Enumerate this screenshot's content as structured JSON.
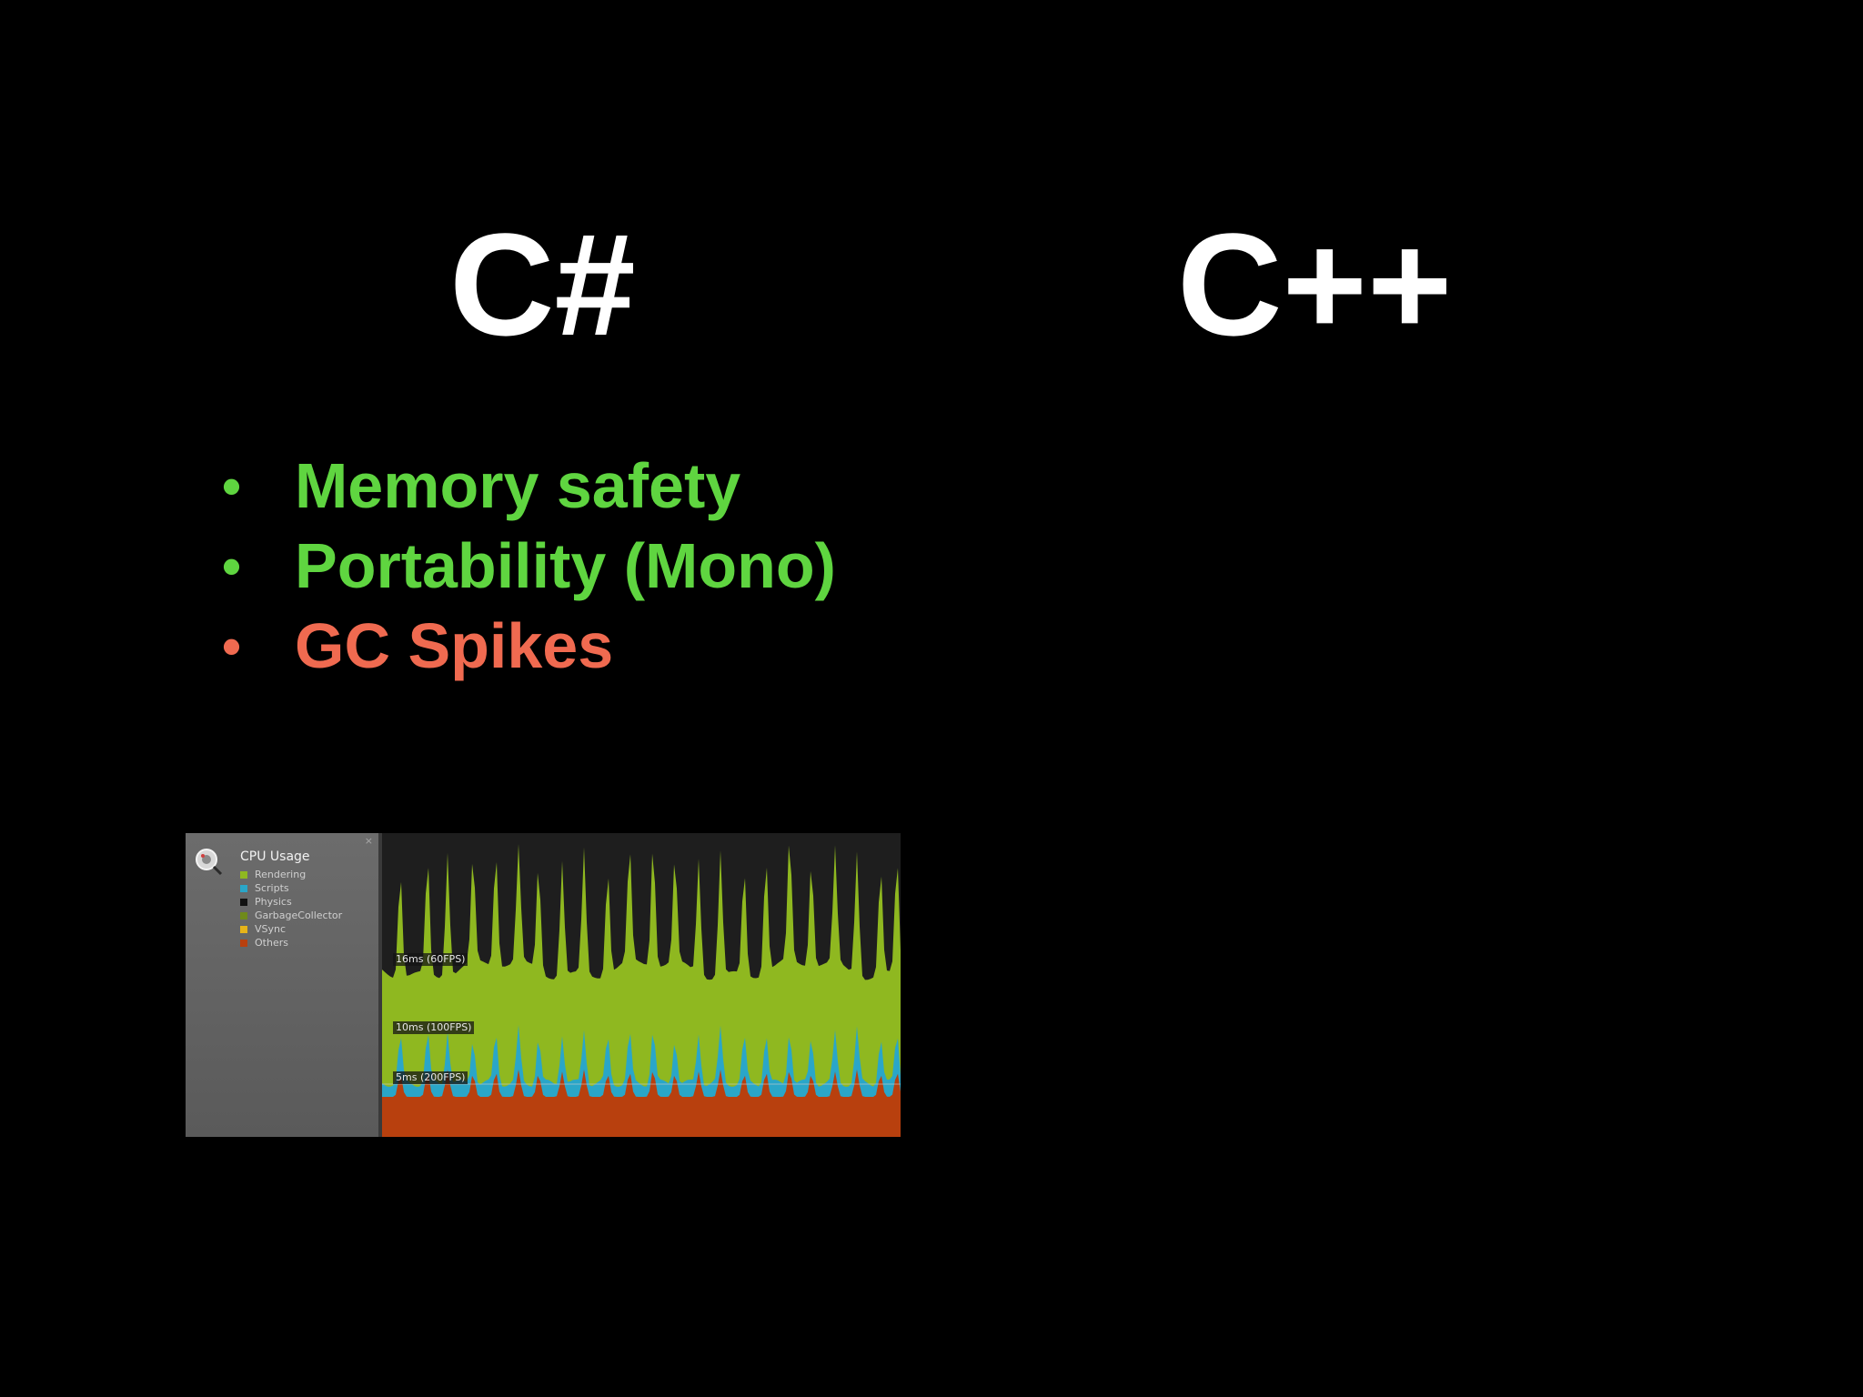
{
  "slide": {
    "left_title": "C#",
    "right_title": "C++",
    "bullets": [
      {
        "text": "Memory safety",
        "color": "#5fd540"
      },
      {
        "text": "Portability (Mono)",
        "color": "#5fd540"
      },
      {
        "text": "GC Spikes",
        "color": "#f06a50"
      }
    ],
    "bullet_char": "•"
  },
  "profiler": {
    "heading": "CPU Usage",
    "close_glyph": "×",
    "legend": [
      {
        "label": "Rendering",
        "color": "#8fb820"
      },
      {
        "label": "Scripts",
        "color": "#2aa6c8"
      },
      {
        "label": "Physics",
        "color": "#111111"
      },
      {
        "label": "GarbageCollector",
        "color": "#6f8a1a"
      },
      {
        "label": "VSync",
        "color": "#e6b419"
      },
      {
        "label": "Others",
        "color": "#b8400e"
      }
    ],
    "fps_markers": [
      {
        "label": "16ms (60FPS)"
      },
      {
        "label": "10ms (100FPS)"
      },
      {
        "label": "5ms (200FPS)"
      }
    ],
    "icon": "profiler-icon"
  }
}
